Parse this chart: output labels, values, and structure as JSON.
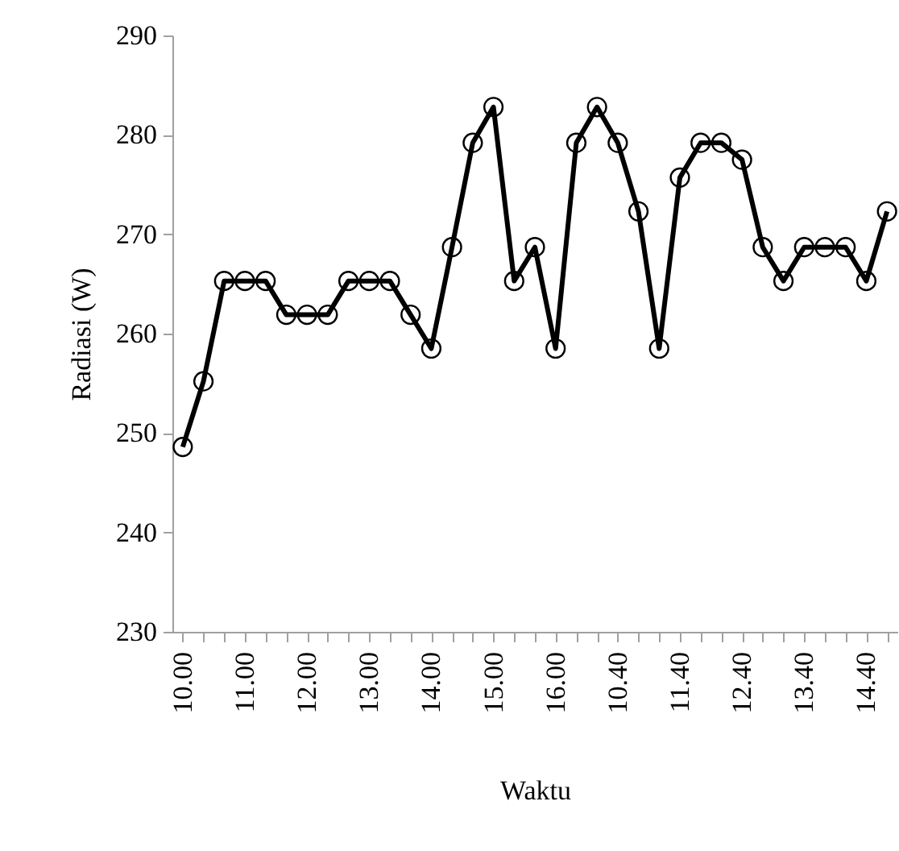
{
  "chart_data": {
    "type": "line",
    "xlabel": "Waktu",
    "ylabel": "Radiasi (W)",
    "categories": [
      "10.00",
      null,
      null,
      "11.00",
      null,
      null,
      "12.00",
      null,
      null,
      "13.00",
      null,
      null,
      "14.00",
      null,
      null,
      "15.00",
      null,
      null,
      "16.00",
      null,
      null,
      "10.40",
      null,
      null,
      "11.40",
      null,
      null,
      "12.40",
      null,
      null,
      "13.40",
      null,
      null,
      "14.40",
      null
    ],
    "series": [
      {
        "color": "#000000",
        "values": [
          248.6,
          255.2,
          265.3,
          265.3,
          265.3,
          261.9,
          261.9,
          261.9,
          265.3,
          265.3,
          265.3,
          261.9,
          258.5,
          268.7,
          279.2,
          282.8,
          265.3,
          268.7,
          258.5,
          279.2,
          282.8,
          279.2,
          272.3,
          258.5,
          275.7,
          279.2,
          279.2,
          277.5,
          268.7,
          265.3,
          268.7,
          268.7,
          268.7,
          265.3,
          272.3
        ]
      }
    ],
    "ylim": [
      230,
      290
    ],
    "yticks": [
      230,
      240,
      250,
      260,
      270,
      280,
      290
    ],
    "grid": false,
    "legend": false,
    "marker": "circle",
    "line_style": "solid"
  }
}
